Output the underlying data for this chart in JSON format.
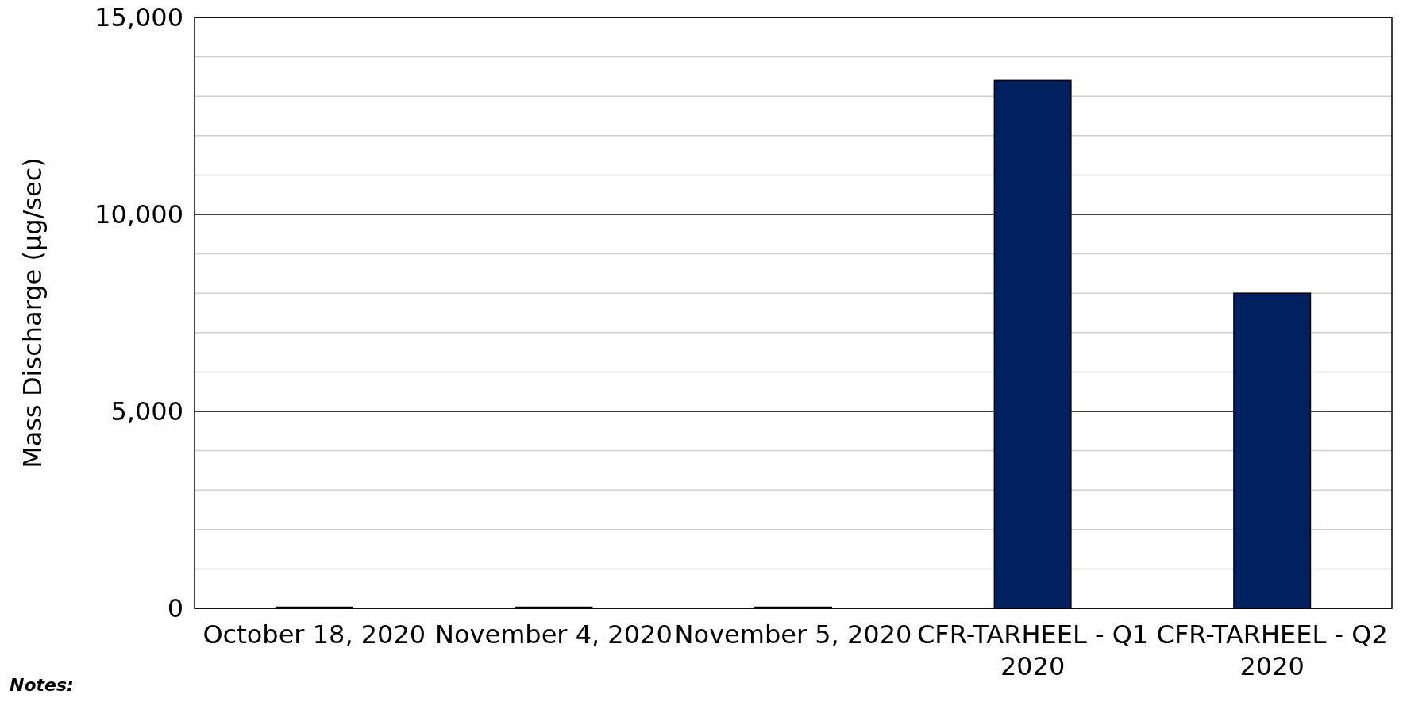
{
  "chart_data": {
    "type": "bar",
    "ylabel": "Mass Discharge (µg/sec)",
    "categories": [
      "October 18, 2020",
      "November 4, 2020",
      "November 5, 2020",
      "CFR-TARHEEL - Q1 2020",
      "CFR-TARHEEL - Q2 2020"
    ],
    "values": [
      30,
      30,
      30,
      13400,
      8000
    ],
    "color": "#002060",
    "ylim": [
      0,
      15000
    ],
    "yticks": [
      0,
      {
        "value": 1000,
        "label": null
      },
      {
        "value": 2000,
        "label": null
      },
      {
        "value": 3000,
        "label": null
      },
      {
        "value": 4000,
        "label": null
      },
      {
        "value": 5000,
        "label": "5,000"
      },
      {
        "value": 6000,
        "label": null
      },
      {
        "value": 7000,
        "label": null
      },
      {
        "value": 8000,
        "label": null
      },
      {
        "value": 9000,
        "label": null
      },
      {
        "value": 10000,
        "label": "10,000"
      },
      {
        "value": 11000,
        "label": null
      },
      {
        "value": 12000,
        "label": null
      },
      {
        "value": 13000,
        "label": null
      },
      {
        "value": 14000,
        "label": null
      },
      {
        "value": 15000,
        "label": "15,000"
      }
    ],
    "grid": true,
    "annotations": [
      "Notes:"
    ]
  }
}
